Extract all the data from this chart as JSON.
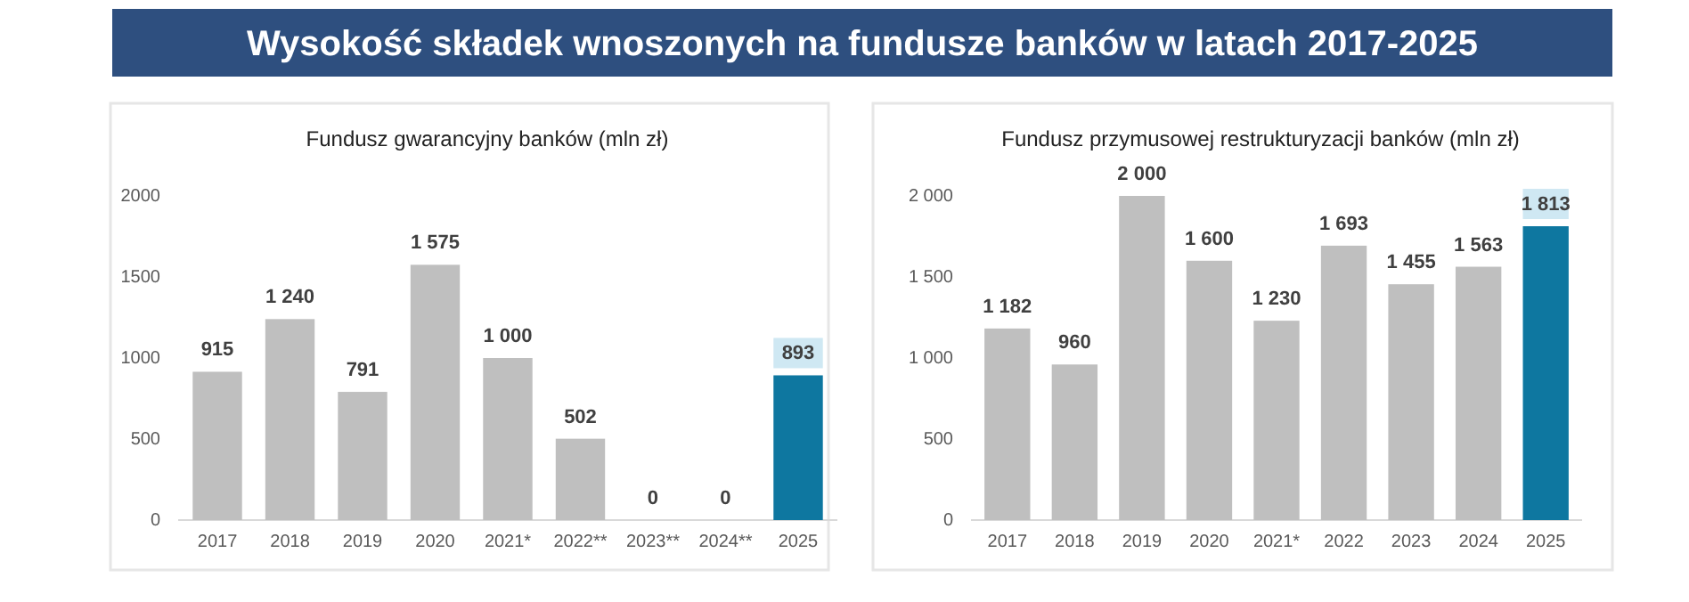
{
  "chart_data": [
    {
      "type": "other",
      "title": "Wysokość składek wnoszonych na fundusze banków w latach 2017-2025"
    },
    {
      "type": "bar",
      "title": "Fundusz gwarancyjny banków (mln zł)",
      "categories": [
        "2017",
        "2018",
        "2019",
        "2020",
        "2021*",
        "2022**",
        "2023**",
        "2024**",
        "2025"
      ],
      "values": [
        915,
        1240,
        791,
        1575,
        1000,
        502,
        0,
        0,
        893
      ],
      "value_labels": [
        "915",
        "1 240",
        "791",
        "1 575",
        "1 000",
        "502",
        "0",
        "0",
        "893"
      ],
      "colors": [
        "#bfbfbf",
        "#bfbfbf",
        "#bfbfbf",
        "#bfbfbf",
        "#bfbfbf",
        "#bfbfbf",
        "#bfbfbf",
        "#bfbfbf",
        "#0e77a0"
      ],
      "ylim": [
        0,
        2000
      ],
      "yticks": [
        0,
        500,
        1000,
        1500,
        2000
      ],
      "grid": false
    },
    {
      "type": "bar",
      "title": "Fundusz przymusowej restrukturyzacji banków (mln zł)",
      "categories": [
        "2017",
        "2018",
        "2019",
        "2020",
        "2021*",
        "2022",
        "2023",
        "2024",
        "2025"
      ],
      "values": [
        1182,
        960,
        2000,
        1600,
        1230,
        1693,
        1455,
        1563,
        1813
      ],
      "value_labels": [
        "1 182",
        "960",
        "2 000",
        "1 600",
        "1 230",
        "1 693",
        "1 455",
        "1 563",
        "1 813"
      ],
      "colors": [
        "#bfbfbf",
        "#bfbfbf",
        "#bfbfbf",
        "#bfbfbf",
        "#bfbfbf",
        "#bfbfbf",
        "#bfbfbf",
        "#bfbfbf",
        "#0e77a0"
      ],
      "ylim": [
        0,
        2000
      ],
      "yticks": [
        0,
        {
          "value": 500,
          "label": "500"
        },
        {
          "value": 1000,
          "label": "1 000"
        },
        {
          "value": 1500,
          "label": "1 500"
        },
        {
          "value": 2000,
          "label": "2 000"
        }
      ],
      "grid": false
    }
  ]
}
